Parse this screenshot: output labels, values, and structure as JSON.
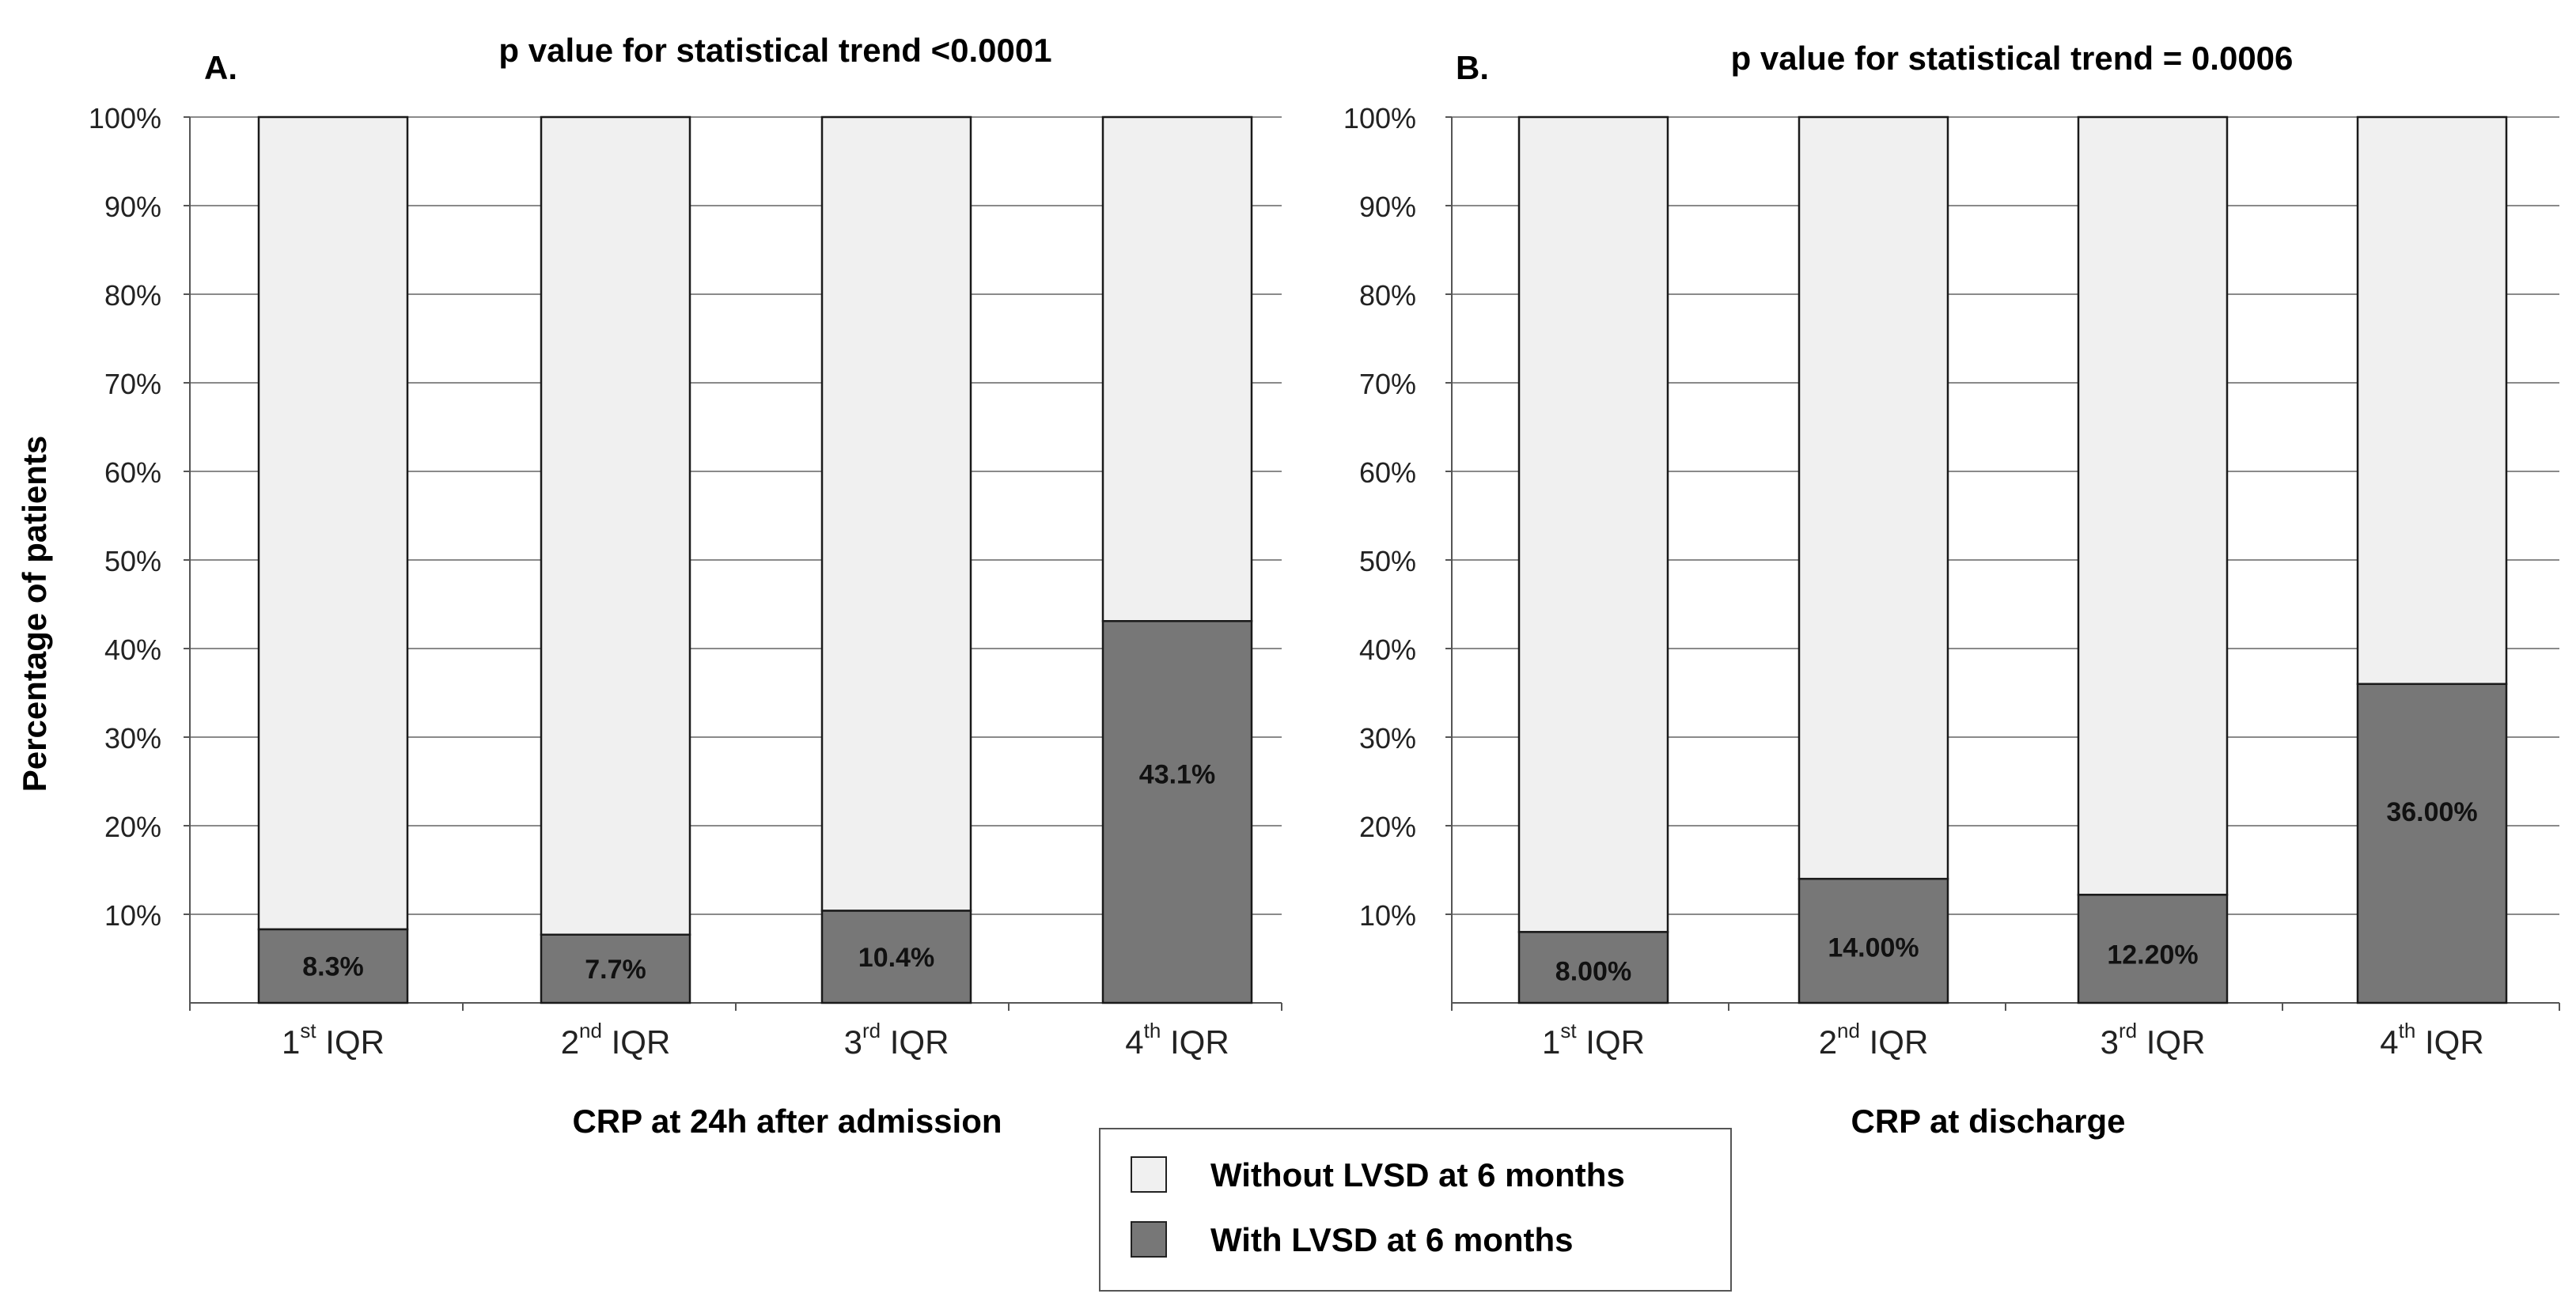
{
  "y_axis_label": "Percentage of patients",
  "legend": {
    "items": [
      {
        "label": "Without LVSD at 6 months",
        "color": "#f0f0f0"
      },
      {
        "label": "With LVSD at 6 months",
        "color": "#777777"
      }
    ]
  },
  "chart_data": [
    {
      "type": "bar",
      "stacked": true,
      "panel_label": "A.",
      "title": "p value for statistical trend <0.0001",
      "xlabel": "CRP at 24h after admission",
      "ylabel": "Percentage of patients",
      "categories": [
        {
          "num": "1",
          "sup": "st",
          "rest": " IQR"
        },
        {
          "num": "2",
          "sup": "nd",
          "rest": " IQR"
        },
        {
          "num": "3",
          "sup": "rd",
          "rest": " IQR"
        },
        {
          "num": "4",
          "sup": "th",
          "rest": " IQR"
        }
      ],
      "series": [
        {
          "name": "With LVSD at 6 months",
          "values": [
            8.3,
            7.7,
            10.4,
            43.1
          ],
          "labels": [
            "8.3%",
            "7.7%",
            "10.4%",
            "43.1%"
          ],
          "color": "#777777"
        },
        {
          "name": "Without LVSD at 6 months",
          "values": [
            91.7,
            92.3,
            89.6,
            56.9
          ],
          "color": "#f0f0f0"
        }
      ],
      "ylim": [
        0,
        100
      ],
      "yticks": [
        "10%",
        "20%",
        "30%",
        "40%",
        "50%",
        "60%",
        "70%",
        "80%",
        "90%",
        "100%"
      ],
      "grid": true
    },
    {
      "type": "bar",
      "stacked": true,
      "panel_label": "B.",
      "title": "p value for statistical trend = 0.0006",
      "xlabel": "CRP at discharge",
      "ylabel": "",
      "categories": [
        {
          "num": "1",
          "sup": "st",
          "rest": " IQR"
        },
        {
          "num": "2",
          "sup": "nd",
          "rest": " IQR"
        },
        {
          "num": "3",
          "sup": "rd",
          "rest": " IQR"
        },
        {
          "num": "4",
          "sup": "th",
          "rest": " IQR"
        }
      ],
      "series": [
        {
          "name": "With LVSD at 6 months",
          "values": [
            8.0,
            14.0,
            12.2,
            36.0
          ],
          "labels": [
            "8.00%",
            "14.00%",
            "12.20%",
            "36.00%"
          ],
          "color": "#777777"
        },
        {
          "name": "Without LVSD at 6 months",
          "values": [
            92.0,
            86.0,
            87.8,
            64.0
          ],
          "color": "#f0f0f0"
        }
      ],
      "ylim": [
        0,
        100
      ],
      "yticks": [
        "10%",
        "20%",
        "30%",
        "40%",
        "50%",
        "60%",
        "70%",
        "80%",
        "90%",
        "100%"
      ],
      "grid": true
    }
  ]
}
